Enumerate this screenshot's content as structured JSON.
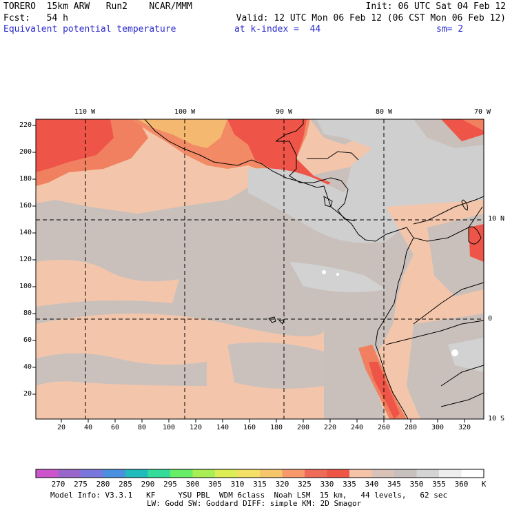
{
  "header": {
    "line1_left": "TORERO  15km ARW   Run2    NCAR/MMM",
    "line1_right": "Init: 06 UTC Sat 04 Feb 12",
    "line2_left": "Fcst:   54 h",
    "line2_right": "Valid: 12 UTC Mon 06 Feb 12 (06 CST Mon 06 Feb 12)",
    "field_title": "Equivalent potential temperature",
    "level": "at k-index =  44",
    "smoothing": "sm= 2"
  },
  "map": {
    "lon_labels": [
      "110 W",
      "100 W",
      "90 W",
      "80 W",
      "70 W"
    ],
    "lat_labels": [
      "10 N",
      "0",
      "10 S"
    ],
    "y_ticks": [
      "220",
      "200",
      "180",
      "160",
      "140",
      "120",
      "100",
      "80",
      "60",
      "40",
      "20"
    ],
    "x_ticks": [
      "20",
      "40",
      "60",
      "80",
      "100",
      "120",
      "140",
      "160",
      "180",
      "200",
      "220",
      "240",
      "260",
      "280",
      "300",
      "320"
    ]
  },
  "colorbar": {
    "values": [
      "270",
      "275",
      "280",
      "285",
      "290",
      "295",
      "300",
      "305",
      "310",
      "315",
      "320",
      "325",
      "330",
      "335",
      "340",
      "345",
      "350",
      "355",
      "360"
    ],
    "unit": "K",
    "colors": [
      "#cc55cc",
      "#9966cc",
      "#7777dd",
      "#4a90e0",
      "#22bbbb",
      "#33dd99",
      "#66ee66",
      "#aaee55",
      "#ddee55",
      "#f5e066",
      "#f7c66a",
      "#f7996a",
      "#f06a5a",
      "#ee5544",
      "#f5c4a8",
      "#d9c2b8",
      "#c8c0bc",
      "#d4d4d4",
      "#eeeeee",
      "#ffffff"
    ]
  },
  "footer": {
    "line1": "Model Info: V3.3.1   KF     YSU PBL  WDM 6class  Noah LSM  15 km,   44 levels,   62 sec",
    "line2": "LW: Godd SW: Goddard DIFF: simple KM: 2D Smagor"
  }
}
